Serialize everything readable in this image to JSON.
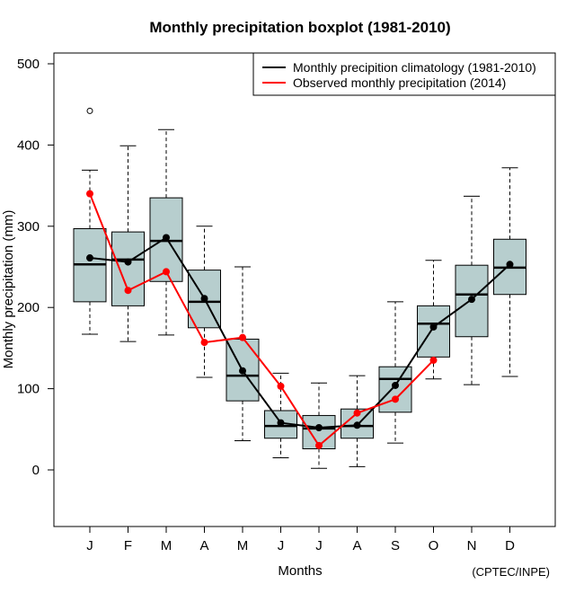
{
  "chart_data": {
    "type": "boxplot",
    "title": "Monthly precipitation boxplot (1981-2010)",
    "xlabel": "Months",
    "ylabel": "Monthly precipitation (mm)",
    "credit": "(CPTEC/INPE)",
    "ylim": [
      -70,
      515
    ],
    "yticks": [
      0,
      100,
      200,
      300,
      400,
      500
    ],
    "categories": [
      "J",
      "F",
      "M",
      "A",
      "M",
      "J",
      "J",
      "A",
      "S",
      "O",
      "N",
      "D"
    ],
    "box_fill": "#b7cece",
    "boxes": [
      {
        "whisker_low": 167,
        "q1": 207,
        "median": 253,
        "q3": 297,
        "whisker_high": 369,
        "outliers": [
          442
        ]
      },
      {
        "whisker_low": 158,
        "q1": 202,
        "median": 259,
        "q3": 293,
        "whisker_high": 399,
        "outliers": []
      },
      {
        "whisker_low": 166,
        "q1": 232,
        "median": 282,
        "q3": 335,
        "whisker_high": 419,
        "outliers": []
      },
      {
        "whisker_low": 114,
        "q1": 175,
        "median": 207,
        "q3": 246,
        "whisker_high": 300,
        "outliers": []
      },
      {
        "whisker_low": 36,
        "q1": 85,
        "median": 116,
        "q3": 161,
        "whisker_high": 250,
        "outliers": []
      },
      {
        "whisker_low": 15,
        "q1": 39,
        "median": 54,
        "q3": 73,
        "whisker_high": 119,
        "outliers": []
      },
      {
        "whisker_low": 2,
        "q1": 26,
        "median": 51,
        "q3": 67,
        "whisker_high": 107,
        "outliers": []
      },
      {
        "whisker_low": 4,
        "q1": 39,
        "median": 54,
        "q3": 75,
        "whisker_high": 116,
        "outliers": []
      },
      {
        "whisker_low": 33,
        "q1": 71,
        "median": 112,
        "q3": 127,
        "whisker_high": 207,
        "outliers": []
      },
      {
        "whisker_low": 112,
        "q1": 139,
        "median": 180,
        "q3": 202,
        "whisker_high": 258,
        "outliers": []
      },
      {
        "whisker_low": 105,
        "q1": 164,
        "median": 216,
        "q3": 252,
        "whisker_high": 337,
        "outliers": []
      },
      {
        "whisker_low": 115,
        "q1": 216,
        "median": 249,
        "q3": 284,
        "whisker_high": 372,
        "outliers": []
      }
    ],
    "series": [
      {
        "name": "Monthly precipition climatology (1981-2010)",
        "color": "#000000",
        "values": [
          261,
          256,
          286,
          211,
          122,
          58,
          52,
          55,
          104,
          176,
          210,
          253
        ]
      },
      {
        "name": "Observed monthly precipitation (2014)",
        "color": "#ff0000",
        "values": [
          340,
          221,
          244,
          157,
          163,
          103,
          30,
          70,
          87,
          135,
          null,
          null
        ]
      }
    ],
    "legend_position": "top-right",
    "grid": false
  }
}
